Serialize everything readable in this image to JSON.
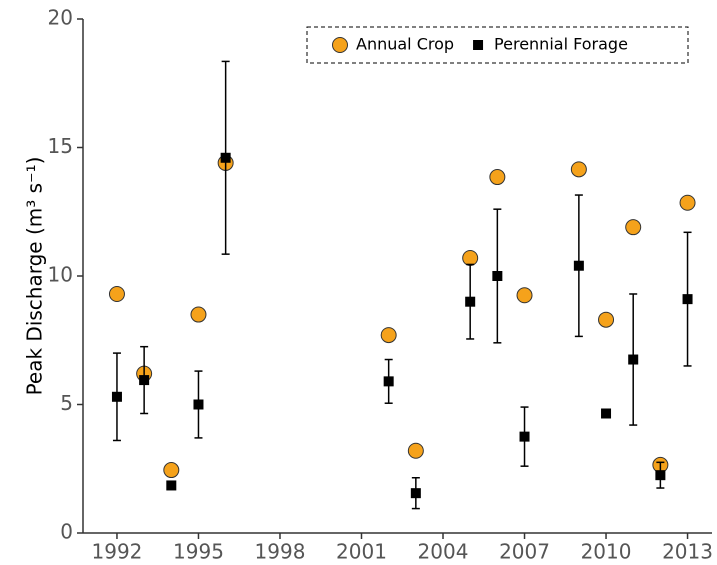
{
  "chart_data": {
    "type": "scatter",
    "y_label": "Peak Discharge (m³ s⁻¹)",
    "x": [
      1992,
      1993,
      1994,
      1995,
      1996,
      2002,
      2003,
      2005,
      2006,
      2007,
      2009,
      2010,
      2011,
      2012,
      2013
    ],
    "series": [
      {
        "name": "Annual Crop",
        "color": "#f5a21b",
        "marker": "circle",
        "values": [
          9.3,
          6.2,
          2.45,
          8.5,
          14.4,
          7.7,
          3.2,
          10.7,
          13.85,
          9.25,
          14.15,
          8.3,
          11.9,
          2.65,
          12.85
        ]
      },
      {
        "name": "Perennial Forage",
        "color": "#000000",
        "marker": "square",
        "values": [
          5.3,
          5.95,
          1.85,
          5.0,
          14.6,
          5.9,
          1.55,
          9.0,
          10.0,
          3.75,
          10.4,
          4.65,
          6.75,
          2.25,
          9.1
        ],
        "errors": [
          1.7,
          1.3,
          0,
          1.3,
          3.75,
          0.85,
          0.6,
          1.45,
          2.6,
          1.15,
          2.75,
          0.15,
          2.55,
          0.5,
          2.6
        ]
      }
    ],
    "xlim": [
      1990.75,
      2013.9
    ],
    "xticks": [
      1992,
      1995,
      1998,
      2001,
      2004,
      2007,
      2010,
      2013
    ],
    "ylim": [
      0,
      20
    ],
    "yticks": [
      0,
      5,
      10,
      15,
      20
    ],
    "legend": "top-right"
  }
}
